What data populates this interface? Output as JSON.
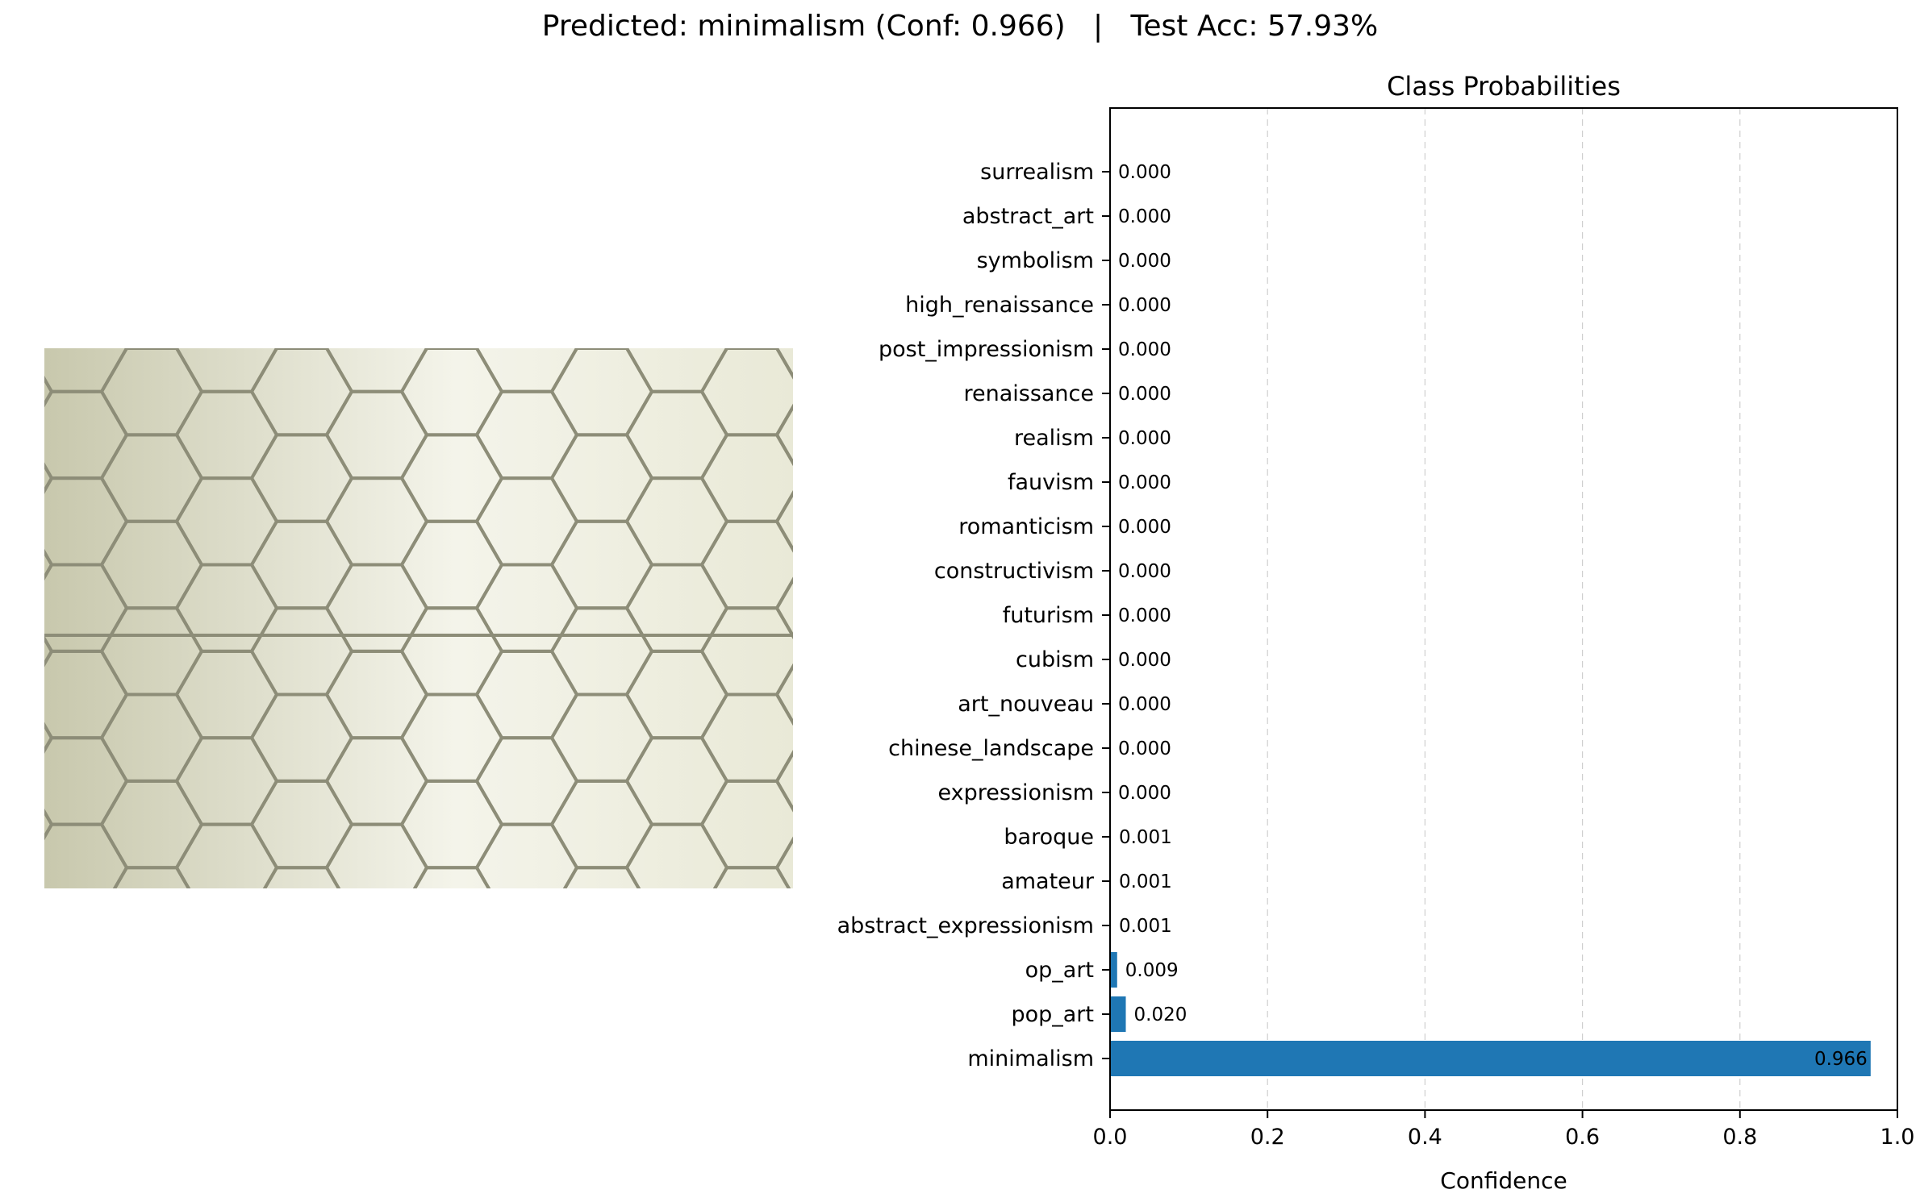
{
  "figure": {
    "title": "Predicted: minimalism (Conf: 0.966)   |   Test Acc: 57.93%"
  },
  "image_panel": {
    "subject": "hexagon-tile-pattern",
    "colors": {
      "tile": "#e9e9d7",
      "grout": "#8d8d78",
      "shade": "#c8c8ad"
    }
  },
  "chart_data": {
    "type": "bar",
    "orientation": "horizontal",
    "title": "Class Probabilities",
    "xlabel": "Confidence",
    "ylabel": "",
    "xlim": [
      0,
      1.0
    ],
    "xticks": [
      "0.0",
      "0.2",
      "0.4",
      "0.6",
      "0.8",
      "1.0"
    ],
    "grid": "x dashed",
    "bar_color": "#1f77b4",
    "categories": [
      "surrealism",
      "abstract_art",
      "symbolism",
      "high_renaissance",
      "post_impressionism",
      "renaissance",
      "realism",
      "fauvism",
      "romanticism",
      "constructivism",
      "futurism",
      "cubism",
      "art_nouveau",
      "chinese_landscape",
      "expressionism",
      "baroque",
      "amateur",
      "abstract_expressionism",
      "op_art",
      "pop_art",
      "minimalism"
    ],
    "values": [
      0.0,
      0.0,
      0.0,
      0.0,
      0.0,
      0.0,
      0.0,
      0.0,
      0.0,
      0.0,
      0.0,
      0.0,
      0.0,
      0.0,
      0.0,
      0.001,
      0.001,
      0.001,
      0.009,
      0.02,
      0.966
    ],
    "value_labels": [
      "0.000",
      "0.000",
      "0.000",
      "0.000",
      "0.000",
      "0.000",
      "0.000",
      "0.000",
      "0.000",
      "0.000",
      "0.000",
      "0.000",
      "0.000",
      "0.000",
      "0.000",
      "0.001",
      "0.001",
      "0.001",
      "0.009",
      "0.020",
      "0.966"
    ]
  }
}
